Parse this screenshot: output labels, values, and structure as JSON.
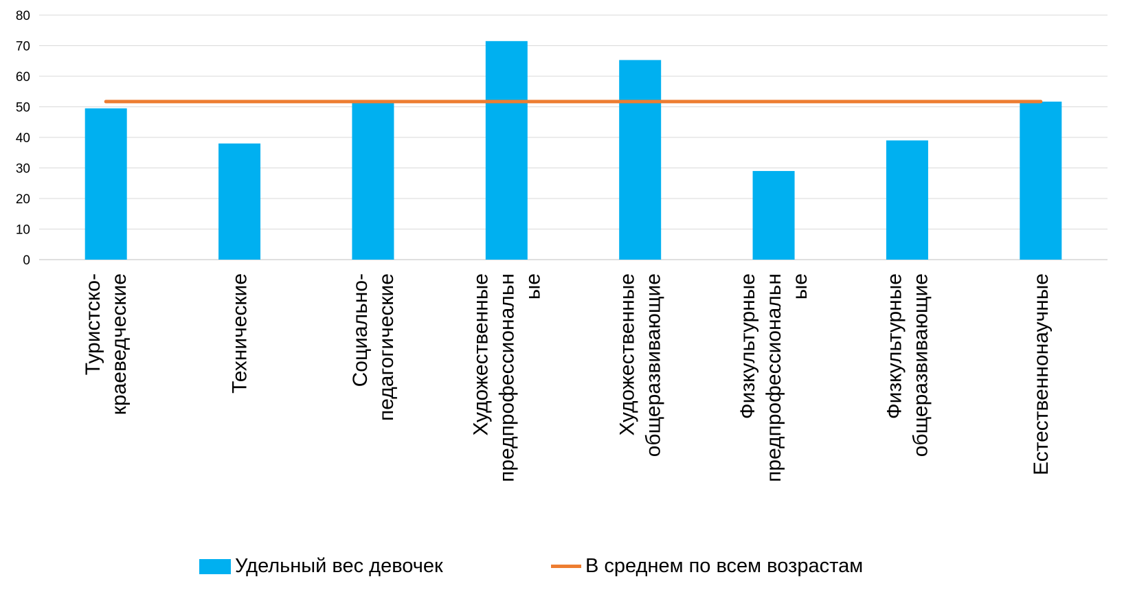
{
  "chart_data": {
    "type": "bar",
    "categories": [
      [
        "Туристско-",
        "краеведческие"
      ],
      [
        "Технические"
      ],
      [
        "Социально-",
        "педагогические"
      ],
      [
        "Художественные",
        "предпрофессиональн",
        "ые"
      ],
      [
        "Художественные",
        "общеразвивающие"
      ],
      [
        "Физкультурные",
        "предпрофессиональн",
        "ые"
      ],
      [
        "Физкультурные",
        "общеразвивающие"
      ],
      [
        "Естественнонаучные"
      ]
    ],
    "series": [
      {
        "name": "Удельный вес девочек",
        "type": "bar",
        "color": "#00B0F0",
        "values": [
          49.5,
          38,
          52,
          71.5,
          65.3,
          29,
          39,
          51.7
        ]
      },
      {
        "name": "В среднем по всем возрастам",
        "type": "line",
        "color": "#ED7D31",
        "values": [
          51.7,
          51.7,
          51.7,
          51.7,
          51.7,
          51.7,
          51.7,
          51.7
        ]
      }
    ],
    "ylim": [
      0,
      80
    ],
    "yticks": [
      0,
      10,
      20,
      30,
      40,
      50,
      60,
      70,
      80
    ],
    "grid": true,
    "legend_position": "bottom"
  }
}
